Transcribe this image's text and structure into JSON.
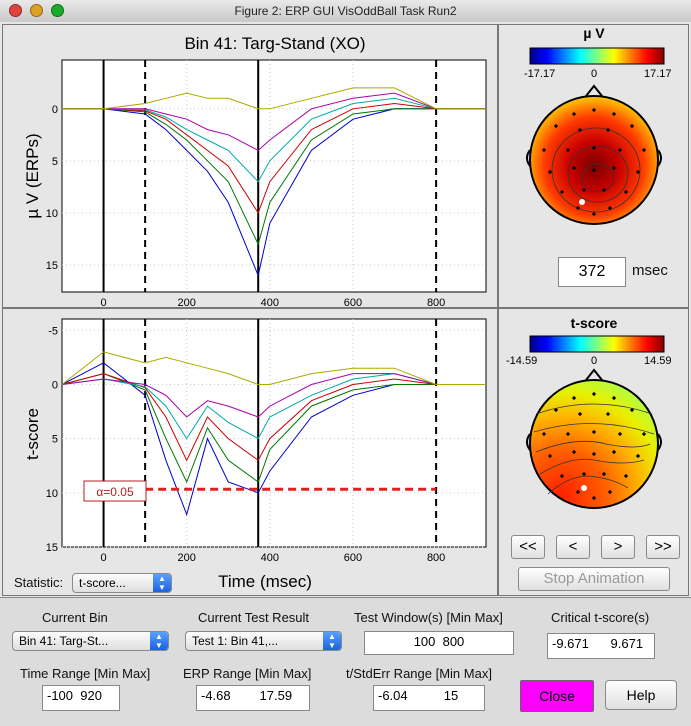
{
  "window": {
    "title": "Figure 2: ERP GUI VisOddBall Task Run2"
  },
  "erp_plot": {
    "title": "Bin 41: Targ-Stand (XO)",
    "ylabel": "µ V (ERPs)",
    "x_ticks": [
      "0",
      "200",
      "400",
      "600",
      "800"
    ],
    "y_ticks": [
      "0",
      "5",
      "10",
      "15"
    ]
  },
  "tscore_plot": {
    "ylabel": "t-score",
    "xlabel": "Time (msec)",
    "x_ticks": [
      "0",
      "200",
      "400",
      "600",
      "800"
    ],
    "y_ticks": [
      "-5",
      "0",
      "5",
      "10",
      "15"
    ],
    "alpha_label": "α=0.05"
  },
  "erp_topo": {
    "colorbar_title": "µ V",
    "cmin": "-17.17",
    "cmid": "0",
    "cmax": "17.17",
    "time_value": "372",
    "time_unit": "msec"
  },
  "tscore_topo": {
    "colorbar_title": "t-score",
    "cmin": "-14.59",
    "cmid": "0",
    "cmax": "14.59"
  },
  "animation": {
    "first": "<<",
    "prev": "<",
    "next": ">",
    "last": ">>",
    "stop": "Stop Animation"
  },
  "statistic": {
    "label": "Statistic:",
    "value": "t-score..."
  },
  "controls": {
    "current_bin_label": "Current Bin",
    "current_bin_value": "Bin 41: Targ-St...",
    "current_test_label": "Current Test Result",
    "current_test_value": "Test 1: Bin 41,...",
    "test_window_label": "Test Window(s) [Min Max]",
    "test_window_value": "100  800",
    "critical_label": "Critical t-score(s)",
    "critical_value": "-9.671      9.671",
    "time_range_label": "Time Range [Min Max]",
    "time_range_value": "-100  920",
    "erp_range_label": "ERP Range [Min Max]",
    "erp_range_value": "-4.68        17.59",
    "tstderr_label": "t/StdErr Range [Min Max]",
    "tstderr_value": "-6.04          15",
    "close_label": "Close",
    "help_label": "Help"
  },
  "colors": {
    "close_button": "#ff00ff",
    "threshold_line": "#e02020",
    "figure_bg": "#e6e6e6"
  },
  "chart_data": [
    {
      "type": "line",
      "title": "Bin 41: Targ-Stand (XO)",
      "xlabel": "",
      "ylabel": "µ V (ERPs)",
      "xlim": [
        -100,
        920
      ],
      "ylim": [
        -4.68,
        17.59
      ],
      "y_reversed": true,
      "grid": true,
      "vertical_markers": [
        0,
        100,
        372,
        800
      ],
      "x": [
        -100,
        0,
        100,
        150,
        200,
        250,
        300,
        372,
        400,
        500,
        600,
        700,
        800,
        920
      ],
      "series": [
        {
          "values": [
            0,
            0,
            0.5,
            2,
            4,
            6,
            9,
            16,
            11,
            4,
            1,
            0,
            0,
            0
          ]
        },
        {
          "values": [
            0,
            0,
            0.3,
            1.5,
            3,
            5,
            7,
            13,
            9,
            3,
            0.5,
            0,
            0,
            0
          ]
        },
        {
          "values": [
            0,
            0,
            0.2,
            1,
            2.5,
            4,
            5.5,
            10,
            7,
            2,
            0,
            -0.5,
            0,
            0
          ]
        },
        {
          "values": [
            0,
            0,
            0.1,
            0.8,
            2,
            3,
            4,
            7,
            5,
            1,
            -0.5,
            -1,
            0,
            0
          ]
        },
        {
          "values": [
            0,
            0,
            0,
            0.5,
            1,
            2,
            2.5,
            4,
            3,
            0,
            -1,
            -1.5,
            0,
            0
          ]
        },
        {
          "values": [
            0,
            0,
            -0.5,
            -1,
            -1.5,
            -1,
            -1,
            0,
            0,
            -1,
            -2,
            -2,
            0,
            0
          ]
        }
      ]
    },
    {
      "type": "line",
      "xlabel": "Time (msec)",
      "ylabel": "t-score",
      "xlim": [
        -100,
        920
      ],
      "ylim": [
        -6.04,
        15
      ],
      "y_reversed": true,
      "grid": true,
      "vertical_markers": [
        0,
        100,
        372,
        800
      ],
      "threshold": {
        "value": 9.671,
        "x_range": [
          100,
          800
        ],
        "label": "α=0.05"
      },
      "x": [
        -100,
        0,
        100,
        150,
        200,
        250,
        300,
        372,
        400,
        500,
        600,
        700,
        800,
        920
      ],
      "series": [
        {
          "values": [
            0,
            -2,
            1,
            7,
            12,
            5,
            9,
            10,
            8,
            3,
            1,
            0,
            0,
            0
          ]
        },
        {
          "values": [
            0,
            -1,
            0.5,
            5,
            9,
            4,
            7,
            9,
            6,
            2,
            0.5,
            0,
            0,
            0
          ]
        },
        {
          "values": [
            0,
            -1,
            0.3,
            3,
            7,
            3,
            5,
            7,
            5,
            1.5,
            0,
            -0.5,
            0,
            0
          ]
        },
        {
          "values": [
            0,
            -0.5,
            0.2,
            2,
            5,
            2,
            3.5,
            5,
            3,
            1,
            -0.5,
            -1,
            0,
            0
          ]
        },
        {
          "values": [
            0,
            -0.5,
            0,
            1,
            3,
            1.5,
            2,
            3,
            2,
            0,
            -1,
            -1,
            0,
            0
          ]
        },
        {
          "values": [
            0,
            -3,
            -2,
            -2.5,
            -2,
            -1.5,
            -1,
            0,
            0,
            -1,
            -1.5,
            -1.5,
            0,
            0
          ]
        }
      ]
    }
  ]
}
